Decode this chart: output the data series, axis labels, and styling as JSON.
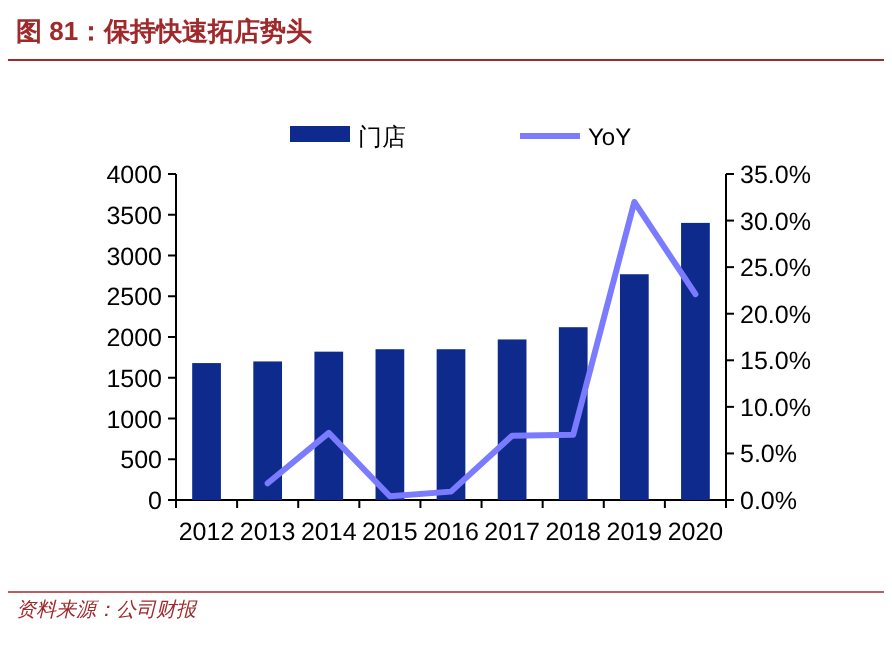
{
  "chart_data": {
    "type": "bar",
    "title": "图 81：保持快速拓店势头",
    "annotations": [
      "资料来源：公司财报"
    ],
    "categories": [
      "2012",
      "2013",
      "2014",
      "2015",
      "2016",
      "2017",
      "2018",
      "2019",
      "2020"
    ],
    "series": [
      {
        "name": "门店",
        "color": "#0d2a8c",
        "values": [
          1680,
          1700,
          1820,
          1850,
          1850,
          1970,
          2120,
          2770,
          3400
        ]
      },
      {
        "name": "YoY",
        "type": "line",
        "axis": "y2",
        "color": "#7b7bff",
        "values": [
          null,
          1.8,
          7.2,
          0.4,
          0.9,
          6.9,
          7.0,
          32.0,
          22.1
        ]
      }
    ],
    "ylim": [
      0,
      4000
    ],
    "yticks": [
      0,
      500,
      1000,
      1500,
      2000,
      2500,
      3000,
      3500,
      4000
    ],
    "y2lim": [
      0,
      35
    ],
    "y2ticks": [
      {
        "value": 0,
        "label": "0.0%"
      },
      {
        "value": 5,
        "label": "5.0%"
      },
      {
        "value": 10,
        "label": "10.0%"
      },
      {
        "value": 15,
        "label": "15.0%"
      },
      {
        "value": 20,
        "label": "20.0%"
      },
      {
        "value": 25,
        "label": "25.0%"
      },
      {
        "value": 30,
        "label": "30.0%"
      },
      {
        "value": 35,
        "label": "35.0%"
      }
    ],
    "legend": "top"
  }
}
